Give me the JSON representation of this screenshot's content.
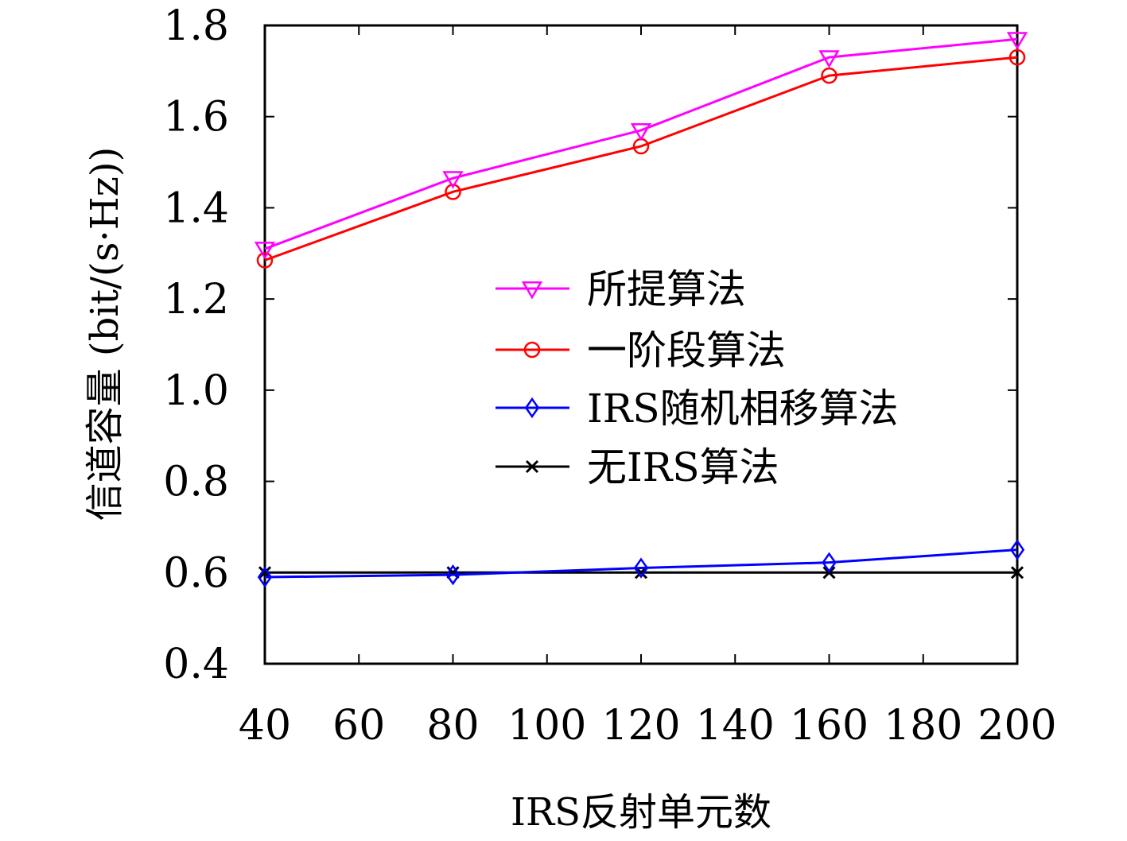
{
  "chart_data": {
    "type": "line",
    "xlabel": "IRS反射单元数",
    "ylabel": "信道容量 (bit/(s·Hz))",
    "xlim": [
      40,
      200
    ],
    "ylim": [
      0.4,
      1.8
    ],
    "xticks": [
      "40",
      "60",
      "80",
      "100",
      "120",
      "140",
      "160",
      "180",
      "200"
    ],
    "yticks": [
      "0.4",
      "0.6",
      "0.8",
      "1.0",
      "1.2",
      "1.4",
      "1.6",
      "1.8"
    ],
    "x": [
      40,
      80,
      120,
      160,
      200
    ],
    "legend_position": "center-right",
    "grid": false,
    "series": [
      {
        "name": "所提算法",
        "values": [
          1.31,
          1.465,
          1.57,
          1.73,
          1.77
        ],
        "color": "#ff00ff",
        "marker": "triangle-down"
      },
      {
        "name": "一阶段算法",
        "values": [
          1.285,
          1.435,
          1.535,
          1.69,
          1.73
        ],
        "color": "#ff0000",
        "marker": "circle"
      },
      {
        "name": "IRS随机相移算法",
        "values": [
          0.59,
          0.595,
          0.61,
          0.622,
          0.65
        ],
        "color": "#0000ff",
        "marker": "diamond"
      },
      {
        "name": "无IRS算法",
        "values": [
          0.6,
          0.6,
          0.6,
          0.6,
          0.6
        ],
        "color": "#000000",
        "marker": "x"
      }
    ]
  }
}
